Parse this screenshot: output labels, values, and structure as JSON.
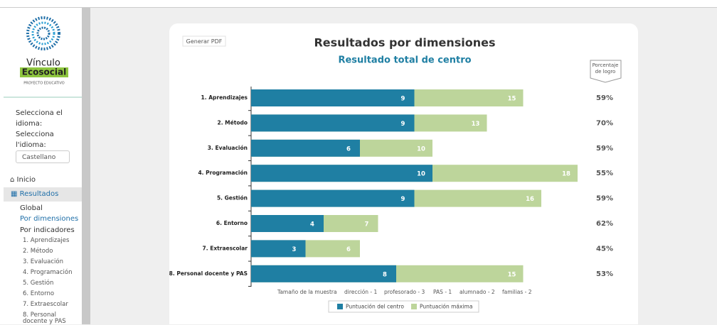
{
  "sidebar": {
    "logo": {
      "name_1": "Vínculo",
      "name_2": "Ecosocial",
      "tagline": "PROYECTO EDUCATIVO"
    },
    "language_label_es": "Selecciona el idioma:",
    "language_label_ca": "Selecciona l'idioma:",
    "language_value": "Castellano",
    "nav": {
      "home": "Inicio",
      "results": "Resultados",
      "global": "Global",
      "by_dimensions": "Por dimensiones",
      "by_indicators": "Por indicadores",
      "indicators": [
        "1. Aprendizajes",
        "2. Método",
        "3. Evaluación",
        "4. Programación",
        "5. Gestión",
        "6. Entorno",
        "7. Extraescolar",
        "8. Personal docente y PAS"
      ]
    }
  },
  "pdf_button": "Generar PDF",
  "chart_data": {
    "type": "bar",
    "orientation": "horizontal",
    "overlap": true,
    "title": "Resultados por dimensiones",
    "subtitle": "Resultado total de centro",
    "categories": [
      "1. Aprendizajes",
      "2. Método",
      "3. Evaluación",
      "4. Programación",
      "5. Gestión",
      "6. Entorno",
      "7. Extraescolar",
      "8. Personal docente y PAS"
    ],
    "series": [
      {
        "name": "Puntuación máxima",
        "color": "#bdd59b",
        "values": [
          15,
          13,
          10,
          18,
          16,
          7,
          6,
          15
        ]
      },
      {
        "name": "Puntuación del centro",
        "color": "#1f7fa3",
        "values": [
          9,
          9,
          6,
          10,
          9,
          4,
          3,
          8
        ]
      }
    ],
    "xlim": [
      0,
      18
    ],
    "percent_header": "Porcentaje de logro",
    "percent_values": [
      59,
      70,
      59,
      55,
      59,
      62,
      45,
      53
    ],
    "percent_labels": [
      "59%",
      "70%",
      "59%",
      "55%",
      "59%",
      "62%",
      "45%",
      "53%"
    ],
    "sample_size": [
      "Tamaño de la muestra",
      "dirección - 1",
      "profesorado - 3",
      "PAS - 1",
      "alumnado - 2",
      "familias - 2"
    ],
    "legend_order": [
      1,
      0
    ]
  }
}
